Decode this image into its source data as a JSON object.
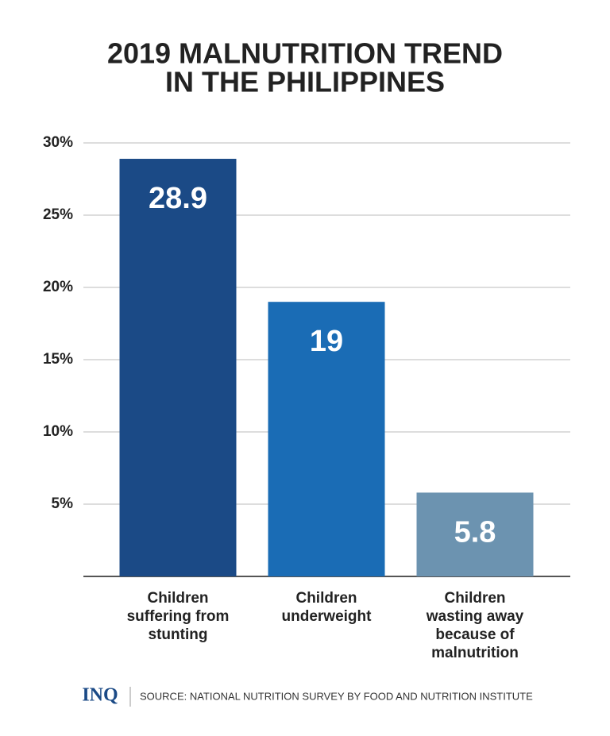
{
  "chart_data": {
    "type": "bar",
    "title": [
      "2019 MALNUTRITION TREND",
      "IN THE PHILIPPINES"
    ],
    "categories": [
      "Children suffering from stunting",
      "Children underweight",
      "Children wasting away because of malnutrition"
    ],
    "values": [
      28.9,
      19,
      5.8
    ],
    "colors": [
      "#1b4a86",
      "#1a6cb5",
      "#6c93b0"
    ],
    "ylim": [
      0,
      30
    ],
    "yticks": [
      {
        "value": 5,
        "label": "5%"
      },
      {
        "value": 10,
        "label": "10%"
      },
      {
        "value": 15,
        "label": "15%"
      },
      {
        "value": 20,
        "label": "20%"
      },
      {
        "value": 25,
        "label": "25%"
      },
      {
        "value": 30,
        "label": "30%"
      }
    ],
    "grid": true,
    "logo": "INQ",
    "source": "SOURCE: NATIONAL NUTRITION SURVEY BY FOOD AND NUTRITION INSTITUTE"
  }
}
